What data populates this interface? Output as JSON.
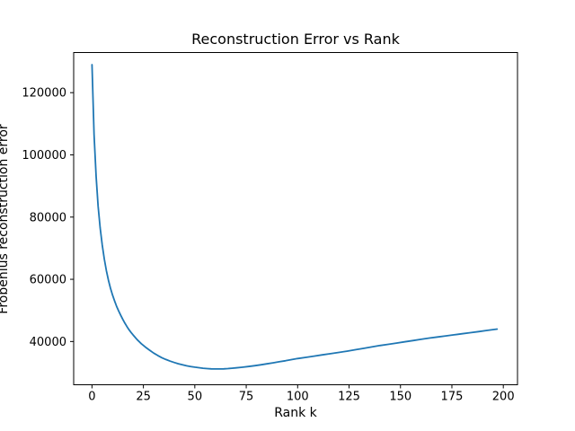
{
  "chart_data": {
    "type": "line",
    "title": "Reconstruction Error vs Rank",
    "xlabel": "Rank k",
    "ylabel": "Frobenius reconstruction error",
    "background": "#ffffff",
    "axis_color": "#000000",
    "text_color": "#000000",
    "grid": false,
    "legend": null,
    "xlim": [
      -8.9,
      206.9
    ],
    "ylim": [
      26100,
      132900
    ],
    "x_ticks": [
      0,
      25,
      50,
      75,
      100,
      125,
      150,
      175,
      200
    ],
    "y_ticks": [
      40000,
      60000,
      80000,
      100000,
      120000
    ],
    "series": [
      {
        "name": "Frobenius reconstruction error",
        "color": "#1f77b4",
        "x": [
          0,
          1,
          2,
          3,
          4,
          5,
          6,
          7,
          8,
          9,
          10,
          11,
          12,
          13,
          14,
          15,
          16,
          17,
          18,
          19,
          20,
          22,
          24,
          26,
          28,
          30,
          32,
          34,
          36,
          38,
          40,
          42,
          44,
          46,
          48,
          50,
          52,
          54,
          56,
          58,
          60,
          62,
          64,
          66,
          68,
          70,
          73,
          76,
          79,
          82,
          85,
          88,
          91,
          94,
          97,
          100,
          104,
          108,
          112,
          116,
          120,
          124,
          128,
          132,
          136,
          140,
          144,
          148,
          152,
          156,
          160,
          164,
          168,
          172,
          176,
          180,
          184,
          188,
          192,
          197
        ],
        "y": [
          129000,
          106500,
          93000,
          83500,
          76500,
          71000,
          66500,
          62800,
          59700,
          57100,
          54900,
          53000,
          51300,
          49800,
          48400,
          47100,
          45900,
          44800,
          43800,
          42900,
          42100,
          40600,
          39300,
          38200,
          37200,
          36300,
          35500,
          34800,
          34200,
          33700,
          33250,
          32850,
          32500,
          32200,
          31950,
          31750,
          31570,
          31420,
          31300,
          31220,
          31180,
          31180,
          31220,
          31300,
          31400,
          31520,
          31730,
          31970,
          32230,
          32520,
          32830,
          33150,
          33480,
          33820,
          34170,
          34520,
          34900,
          35300,
          35700,
          36100,
          36500,
          36900,
          37350,
          37800,
          38250,
          38700,
          39100,
          39500,
          39900,
          40300,
          40700,
          41100,
          41450,
          41800,
          42150,
          42500,
          42850,
          43200,
          43550,
          44000
        ]
      }
    ]
  }
}
